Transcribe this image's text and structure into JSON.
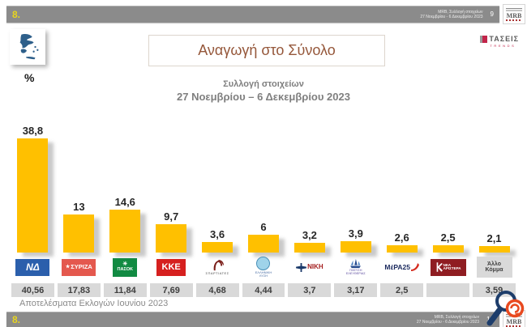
{
  "top_bar": {
    "slide_number": "8.",
    "source_line1": "MRB, Συλλογή στοιχείων",
    "source_line2": "27 Νοεμβρίου - 6 Δεκεμβρίου 2023",
    "page_number": "9",
    "logo_text": "MRB"
  },
  "bottom_bar": {
    "slide_number": "8.",
    "source_line1": "MRB, Συλλογή στοιχείων",
    "source_line2": "27 Νοεμβρίου - 6 Δεκεμβρίου 2023",
    "page_number": "10",
    "logo_text": "MRB"
  },
  "branding": {
    "taseis_text": "ΤΑΣΕΙΣ",
    "trends_text": "TRENDS",
    "percent_label": "%"
  },
  "heading": {
    "title": "Αναγωγή στο Σύνολο",
    "subtitle_line1": "Συλλογή στοιχείων",
    "subtitle_line2": "27 Νοεμβρίου – 6 Δεκεμβρίου  2023"
  },
  "footnote": "Αποτελέσματα Εκλογών Ιουνίου 2023",
  "chart_data": {
    "type": "bar",
    "title": "Αναγωγή στο Σύνολο",
    "unit": "%",
    "categories": [
      "ΝΕΑ ΔΗΜΟΚΡΑΤΙΑ",
      "ΣΥΡΙΖΑ",
      "ΠΑΣΟΚ",
      "ΚΚΕ",
      "ΣΠΑΡΤΙΑΤΕΣ",
      "ΕΛΛΗΝΙΚΗ ΛΥΣΗ",
      "ΝΙΚΗ",
      "ΠΛΕΥΣΗ ΕΛΕΥΘΕΡΙΑΣ",
      "ΜΕΡΑ25",
      "ΝΕΑ ΑΡΙΣΤΕΡΑ",
      "Άλλο Κόμμα"
    ],
    "series": [
      {
        "name": "Αναγωγή στο Σύνολο",
        "values": [
          38.8,
          13,
          14.6,
          9.7,
          3.6,
          6,
          3.2,
          3.9,
          2.6,
          2.5,
          2.1
        ],
        "labels": [
          "38,8",
          "13",
          "14,6",
          "9,7",
          "3,6",
          "6",
          "3,2",
          "3,9",
          "2,6",
          "2,5",
          "2,1"
        ]
      },
      {
        "name": "Αποτελέσματα Εκλογών Ιουνίου 2023",
        "values": [
          40.56,
          17.83,
          11.84,
          7.69,
          4.68,
          4.44,
          3.7,
          3.17,
          2.5,
          null,
          3.59
        ],
        "labels": [
          "40,56",
          "17,83",
          "11,84",
          "7,69",
          "4,68",
          "4,44",
          "3,7",
          "3,17",
          "2,5",
          "",
          "3,59"
        ]
      }
    ],
    "ylim": [
      0,
      42
    ],
    "grid": false,
    "legend": "none",
    "bar_color": "#FFC000"
  },
  "parties": [
    {
      "key": "nd",
      "name": "ΝΕΑ ΔΗΜΟΚΡΑΤΙΑ",
      "logo": {
        "text": "ΝΔ",
        "bg": "#2b5fac",
        "fg": "#ffffff"
      }
    },
    {
      "key": "syriza",
      "name": "ΣΥΡΙΖΑ",
      "logo": {
        "text": "ΣΥΡΙΖΑ",
        "icon": "★",
        "bg": "#e4584e",
        "fg": "#ffffff"
      }
    },
    {
      "key": "pasok",
      "name": "ΠΑΣΟΚ",
      "logo": {
        "text": "ΠΑΣΟΚ",
        "icon": "☀",
        "bg": "#118a42",
        "fg": "#ffffff"
      }
    },
    {
      "key": "kke",
      "name": "ΚΚΕ",
      "logo": {
        "text": "ΚΚΕ",
        "bg": "#d6201f",
        "fg": "#ffffff"
      }
    },
    {
      "key": "spartiates",
      "name": "ΣΠΑΡΤΙΑΤΕΣ",
      "logo": {
        "text": "ΣΠΑΡΤΙΑΤΕΣ",
        "accent": "#7b1f1a",
        "fg": "#4a4a4a"
      }
    },
    {
      "key": "elliniki-lysi",
      "name": "ΕΛΛΗΝΙΚΗ ΛΥΣΗ",
      "logo": {
        "line1": "ΕΛΛΗΝΙΚΗ",
        "line2": "ΛΥΣΗ",
        "accent": "#9fd3ea",
        "fg": "#4a6fa5"
      }
    },
    {
      "key": "niki",
      "name": "ΝΙΚΗ",
      "logo": {
        "text": "ΝΙΚΗ",
        "accent": "#1b3a6b",
        "fg": "#a41f1f"
      }
    },
    {
      "key": "plefsi",
      "name": "ΠΛΕΥΣΗ ΕΛΕΥΘΕΡΙΑΣ",
      "logo": {
        "line1": "ΠΛΕΥΣΗ",
        "line2": "ΕΛΕΥΘΕΡΙΑΣ",
        "accent": "#4a7fc1",
        "fg": "#5b4a9e"
      }
    },
    {
      "key": "mera25",
      "name": "ΜΕΡΑ25",
      "logo": {
        "text": "ΜέΡΑ25",
        "accent": "#d42a1e",
        "fg": "#1b2a5e"
      }
    },
    {
      "key": "nea-aristera",
      "name": "ΝΕΑ ΑΡΙΣΤΕΡΑ",
      "logo": {
        "line1": "ΝΕΑ",
        "line2": "ΑΡΙΣΤΕΡΑ",
        "bg": "#8f1d22",
        "fg": "#ffffff"
      }
    },
    {
      "key": "other",
      "name": "Άλλο Κόμμα",
      "logo": {
        "line1": "Άλλο",
        "line2": "Κόμμα",
        "bg": "#d9d9d9",
        "fg": "#3f3f3f"
      }
    }
  ]
}
